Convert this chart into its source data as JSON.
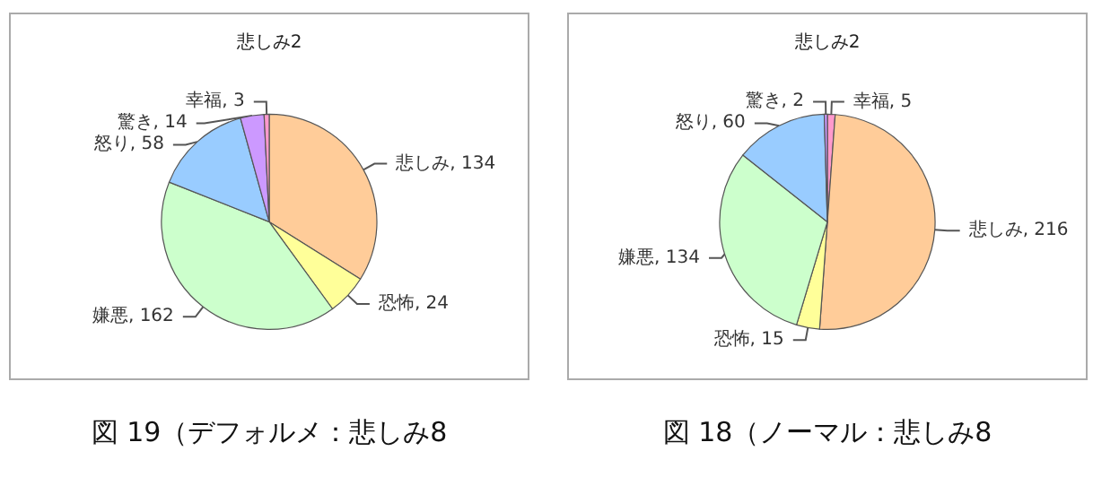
{
  "chart_data": [
    {
      "type": "pie",
      "title": "悲しみ2",
      "categories": [
        "悲しみ",
        "恐怖",
        "嫌悪",
        "怒り",
        "驚き",
        "幸福"
      ],
      "values": [
        134,
        24,
        162,
        58,
        14,
        3
      ],
      "colors": [
        "#ffcc99",
        "#ffff99",
        "#ccffcc",
        "#99ccff",
        "#cc99ff",
        "#ff99cc"
      ],
      "value_labels": [
        ", 134",
        ", 24",
        ", 162",
        ", 58",
        ", 14",
        ", 3"
      ],
      "legend": false,
      "annotations": [
        "図 19（デフォルメ：悲しみ8"
      ]
    },
    {
      "type": "pie",
      "title": "悲しみ2",
      "categories": [
        "幸福",
        "悲しみ",
        "恐怖",
        "嫌悪",
        "怒り",
        "驚き"
      ],
      "values": [
        5,
        216,
        15,
        134,
        60,
        2
      ],
      "colors": [
        "#ff99cc",
        "#ffcc99",
        "#ffff99",
        "#ccffcc",
        "#99ccff",
        "#cc99ff"
      ],
      "value_labels": [
        ", 5",
        ", 216",
        ", 15",
        ", 134",
        ", 60",
        ", 2"
      ],
      "legend": false,
      "annotations": [
        "図 18（ノーマル：悲しみ8"
      ]
    }
  ]
}
